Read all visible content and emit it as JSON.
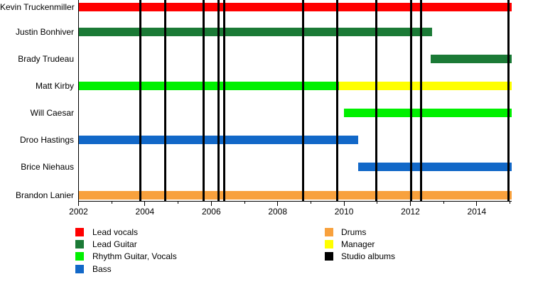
{
  "chart_data": {
    "type": "bar",
    "variant": "band-member-timeline-gantt",
    "title": "",
    "x_axis": {
      "min": 2002,
      "max": 2015.05,
      "major_ticks": [
        2002,
        2004,
        2006,
        2008,
        2010,
        2012,
        2014
      ],
      "minor_ticks": [
        2003,
        2005,
        2007,
        2009,
        2011,
        2013,
        2015
      ],
      "grid": false
    },
    "members": [
      {
        "name": "Kevin Truckenmiller",
        "segments": [
          {
            "role": "Lead vocals",
            "start": 2002,
            "end": 2015.05
          }
        ]
      },
      {
        "name": "Justin Bonhiver",
        "segments": [
          {
            "role": "Lead Guitar",
            "start": 2002,
            "end": 2012.65
          }
        ]
      },
      {
        "name": "Brady Trudeau",
        "segments": [
          {
            "role": "Lead Guitar",
            "start": 2012.6,
            "end": 2015.05
          }
        ]
      },
      {
        "name": "Matt Kirby",
        "segments": [
          {
            "role": "Rhythm Guitar, Vocals",
            "start": 2002,
            "end": 2009.85
          },
          {
            "role": "Manager",
            "start": 2009.85,
            "end": 2015.05
          }
        ]
      },
      {
        "name": "Will Caesar",
        "segments": [
          {
            "role": "Rhythm Guitar, Vocals",
            "start": 2010.0,
            "end": 2015.05
          }
        ]
      },
      {
        "name": "Droo Hastings",
        "segments": [
          {
            "role": "Bass",
            "start": 2002,
            "end": 2010.42
          }
        ]
      },
      {
        "name": "Brice Niehaus",
        "segments": [
          {
            "role": "Bass",
            "start": 2010.42,
            "end": 2015.05
          }
        ]
      },
      {
        "name": "Brandon Lanier",
        "segments": [
          {
            "role": "Drums",
            "start": 2002,
            "end": 2015.05
          }
        ]
      }
    ],
    "studio_albums_years": [
      2003.87,
      2004.62,
      2005.77,
      2006.22,
      2006.4,
      2008.77,
      2009.8,
      2010.97,
      2012.02,
      2012.33,
      2014.96
    ],
    "role_colors": {
      "Lead vocals": "#ff0000",
      "Lead Guitar": "#1b7a36",
      "Rhythm Guitar, Vocals": "#00f000",
      "Bass": "#1268c8",
      "Drums": "#f8a13d",
      "Manager": "#ffff00",
      "Studio albums": "#000000"
    },
    "legend": {
      "position": "bottom",
      "left_column": [
        "Lead vocals",
        "Lead Guitar",
        "Rhythm Guitar, Vocals",
        "Bass"
      ],
      "right_column": [
        "Drums",
        "Manager",
        "Studio albums"
      ]
    }
  }
}
